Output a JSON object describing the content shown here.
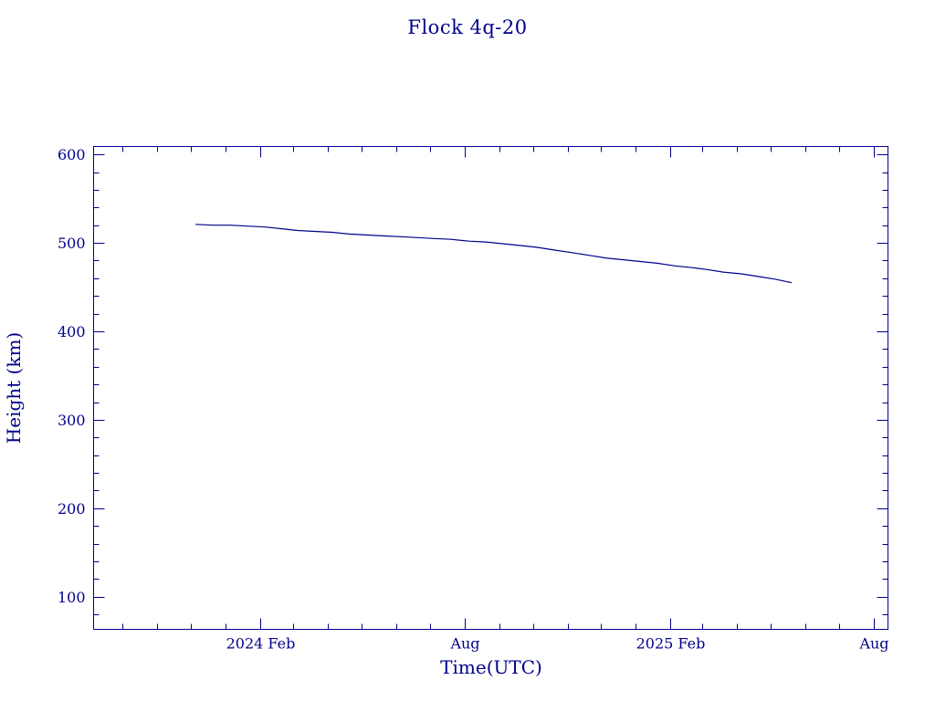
{
  "chart_data": {
    "type": "line",
    "title": "Flock 4q-20",
    "xlabel": "Time(UTC)",
    "ylabel": "Height (km)",
    "xlim": [
      "2023-09-05",
      "2025-08-14"
    ],
    "ylim": [
      63,
      609
    ],
    "y_ticks": [
      100,
      200,
      300,
      400,
      500,
      600
    ],
    "x_ticks": [
      {
        "date": "2024-02-01",
        "label": "2024 Feb"
      },
      {
        "date": "2024-08-01",
        "label": "Aug"
      },
      {
        "date": "2025-02-01",
        "label": "2025 Feb"
      },
      {
        "date": "2025-08-01",
        "label": "Aug"
      }
    ],
    "x_minor_ticks": [
      "2023-10-01",
      "2023-11-01",
      "2023-12-01",
      "2024-01-01",
      "2024-03-01",
      "2024-04-01",
      "2024-05-01",
      "2024-06-01",
      "2024-07-01",
      "2024-09-01",
      "2024-10-01",
      "2024-11-01",
      "2024-12-01",
      "2025-01-01",
      "2025-03-01",
      "2025-04-01",
      "2025-05-01",
      "2025-06-01",
      "2025-07-01"
    ],
    "grid": false,
    "legend": "none",
    "series": [
      {
        "color": "#00008b",
        "x": [
          "2023-12-05",
          "2023-12-20",
          "2024-01-05",
          "2024-01-20",
          "2024-02-05",
          "2024-02-20",
          "2024-03-05",
          "2024-03-20",
          "2024-04-05",
          "2024-04-20",
          "2024-05-05",
          "2024-05-20",
          "2024-06-05",
          "2024-06-20",
          "2024-07-05",
          "2024-07-20",
          "2024-08-05",
          "2024-08-20",
          "2024-09-05",
          "2024-09-20",
          "2024-10-05",
          "2024-10-20",
          "2024-11-05",
          "2024-11-20",
          "2024-12-05",
          "2024-12-20",
          "2025-01-05",
          "2025-01-20",
          "2025-02-05",
          "2025-02-20",
          "2025-03-05",
          "2025-03-20",
          "2025-04-05",
          "2025-04-20",
          "2025-05-05",
          "2025-05-20"
        ],
        "y": [
          521,
          520,
          520,
          519,
          518,
          516,
          514,
          513,
          512,
          510,
          509,
          508,
          507,
          506,
          505,
          504,
          502,
          501,
          499,
          497,
          495,
          492,
          489,
          486,
          483,
          481,
          479,
          477,
          474,
          472,
          470,
          467,
          465,
          462,
          459,
          455
        ]
      }
    ]
  }
}
